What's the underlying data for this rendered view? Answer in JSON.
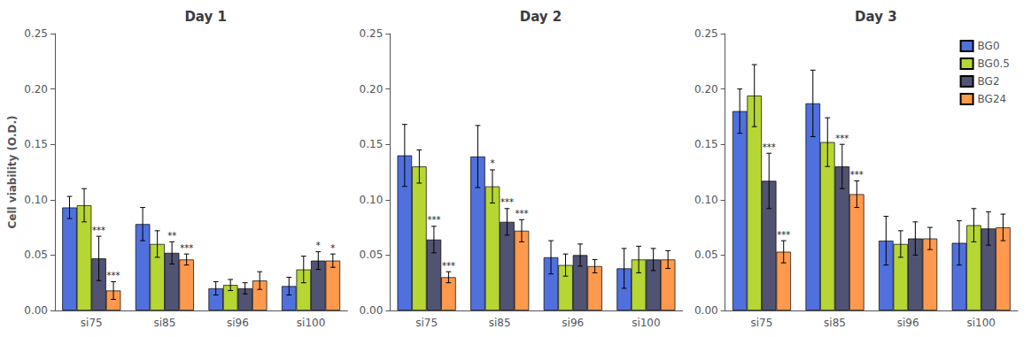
{
  "chart_data": [
    {
      "type": "bar",
      "title": "Day 1",
      "ylabel": "Cell viability (O.D.)",
      "categories": [
        "si75",
        "si85",
        "si96",
        "si100"
      ],
      "series": [
        {
          "name": "BG0",
          "values": [
            0.093,
            0.078,
            0.02,
            0.022
          ],
          "errors": [
            0.01,
            0.015,
            0.006,
            0.008
          ],
          "annotations": [
            null,
            null,
            null,
            null
          ]
        },
        {
          "name": "BG0.5",
          "values": [
            0.095,
            0.06,
            0.023,
            0.037
          ],
          "errors": [
            0.015,
            0.012,
            0.005,
            0.012
          ],
          "annotations": [
            null,
            null,
            null,
            null
          ]
        },
        {
          "name": "BG2",
          "values": [
            0.047,
            0.052,
            0.02,
            0.045
          ],
          "errors": [
            0.02,
            0.01,
            0.005,
            0.008
          ],
          "annotations": [
            "***",
            "**",
            null,
            "*"
          ]
        },
        {
          "name": "BG24",
          "values": [
            0.018,
            0.046,
            0.027,
            0.045
          ],
          "errors": [
            0.008,
            0.005,
            0.008,
            0.006
          ],
          "annotations": [
            "***",
            "***",
            null,
            "*"
          ]
        }
      ],
      "ylim": [
        0,
        0.25
      ],
      "yticks": [
        {
          "value": 0,
          "label": "0.00"
        },
        0.05,
        {
          "value": 0.1,
          "label": "0.10"
        },
        0.15,
        {
          "value": 0.2,
          "label": "0.20"
        },
        0.25
      ],
      "grid": false
    },
    {
      "type": "bar",
      "title": "Day 2",
      "categories": [
        "si75",
        "si85",
        "si96",
        "si100"
      ],
      "series": [
        {
          "name": "BG0",
          "values": [
            0.14,
            0.139,
            0.048,
            0.038
          ],
          "errors": [
            0.028,
            0.028,
            0.015,
            0.018
          ],
          "annotations": [
            null,
            null,
            null,
            null
          ]
        },
        {
          "name": "BG0.5",
          "values": [
            0.13,
            0.112,
            0.041,
            0.046
          ],
          "errors": [
            0.015,
            0.015,
            0.01,
            0.012
          ],
          "annotations": [
            null,
            "*",
            null,
            null
          ]
        },
        {
          "name": "BG2",
          "values": [
            0.064,
            0.08,
            0.05,
            0.046
          ],
          "errors": [
            0.012,
            0.012,
            0.01,
            0.01
          ],
          "annotations": [
            "***",
            "***",
            null,
            null
          ]
        },
        {
          "name": "BG24",
          "values": [
            0.03,
            0.072,
            0.04,
            0.046
          ],
          "errors": [
            0.005,
            0.01,
            0.006,
            0.008
          ],
          "annotations": [
            "***",
            "***",
            null,
            null
          ]
        }
      ],
      "ylim": [
        0,
        0.25
      ],
      "yticks": [
        {
          "value": 0,
          "label": "0.00"
        },
        0.05,
        {
          "value": 0.1,
          "label": "0.10"
        },
        0.15,
        {
          "value": 0.2,
          "label": "0.20"
        },
        0.25
      ],
      "grid": false
    },
    {
      "type": "bar",
      "title": "Day 3",
      "categories": [
        "si75",
        "si85",
        "si96",
        "si100"
      ],
      "series": [
        {
          "name": "BG0",
          "values": [
            0.18,
            0.187,
            0.063,
            0.061
          ],
          "errors": [
            0.02,
            0.03,
            0.022,
            0.02
          ],
          "annotations": [
            null,
            null,
            null,
            null
          ]
        },
        {
          "name": "BG0.5",
          "values": [
            0.194,
            0.152,
            0.06,
            0.077
          ],
          "errors": [
            0.028,
            0.022,
            0.012,
            0.015
          ],
          "annotations": [
            null,
            null,
            null,
            null
          ]
        },
        {
          "name": "BG2",
          "values": [
            0.117,
            0.13,
            0.065,
            0.074
          ],
          "errors": [
            0.025,
            0.02,
            0.015,
            0.015
          ],
          "annotations": [
            "***",
            "***",
            null,
            null
          ]
        },
        {
          "name": "BG24",
          "values": [
            0.053,
            0.105,
            0.065,
            0.075
          ],
          "errors": [
            0.01,
            0.012,
            0.01,
            0.012
          ],
          "annotations": [
            "***",
            "***",
            null,
            null
          ]
        }
      ],
      "ylim": [
        0,
        0.25
      ],
      "yticks": [
        {
          "value": 0,
          "label": "0.00"
        },
        0.05,
        {
          "value": 0.1,
          "label": "0.10"
        },
        0.15,
        {
          "value": 0.2,
          "label": "0.20"
        },
        0.25
      ],
      "grid": false,
      "legend": "upper right"
    }
  ]
}
